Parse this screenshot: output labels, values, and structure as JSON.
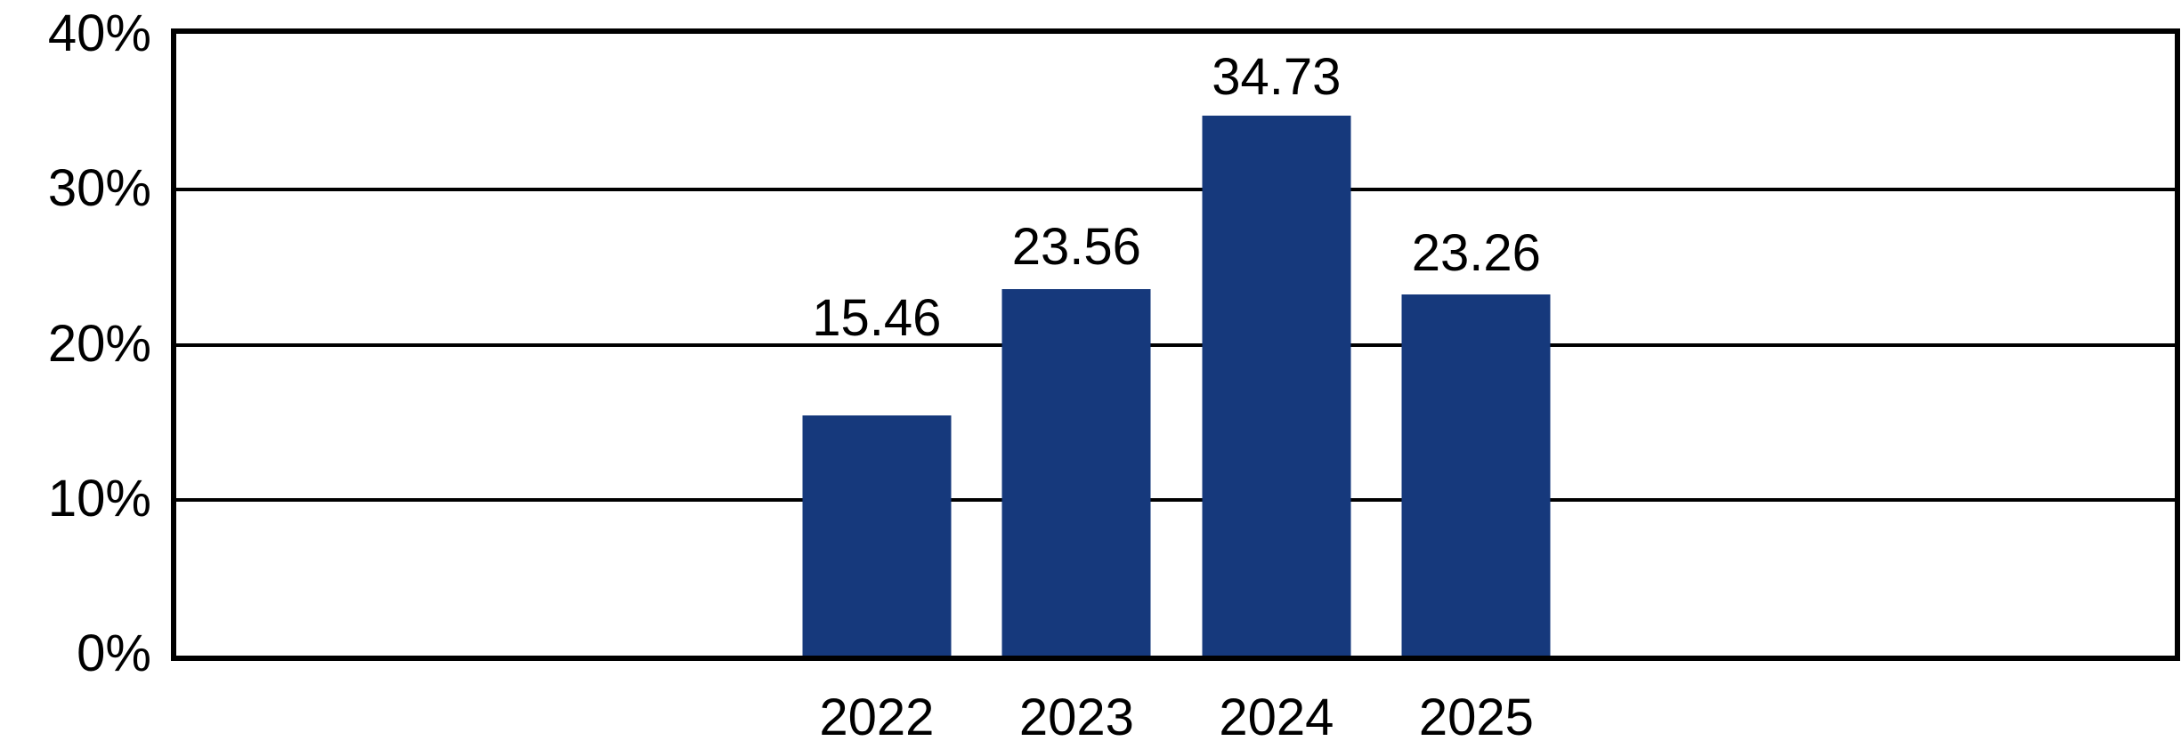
{
  "chart_data": {
    "type": "bar",
    "categories": [
      "2022",
      "2023",
      "2024",
      "2025"
    ],
    "values": [
      15.46,
      23.56,
      34.73,
      23.26
    ],
    "value_labels": [
      "15.46",
      "23.56",
      "34.73",
      "23.26"
    ],
    "title": "",
    "xlabel": "",
    "ylabel": "",
    "ylim": [
      0,
      40
    ],
    "ytick_labels": [
      "0%",
      "10%",
      "20%",
      "30%",
      "40%"
    ],
    "ytick_values": [
      0,
      10,
      20,
      30,
      40
    ],
    "grid": true,
    "legend": false,
    "bar_color": "#16397C",
    "grid_color": "#000000",
    "axis_color": "#000000",
    "text_color": "#000000",
    "background_color": "#FFFFFF"
  }
}
